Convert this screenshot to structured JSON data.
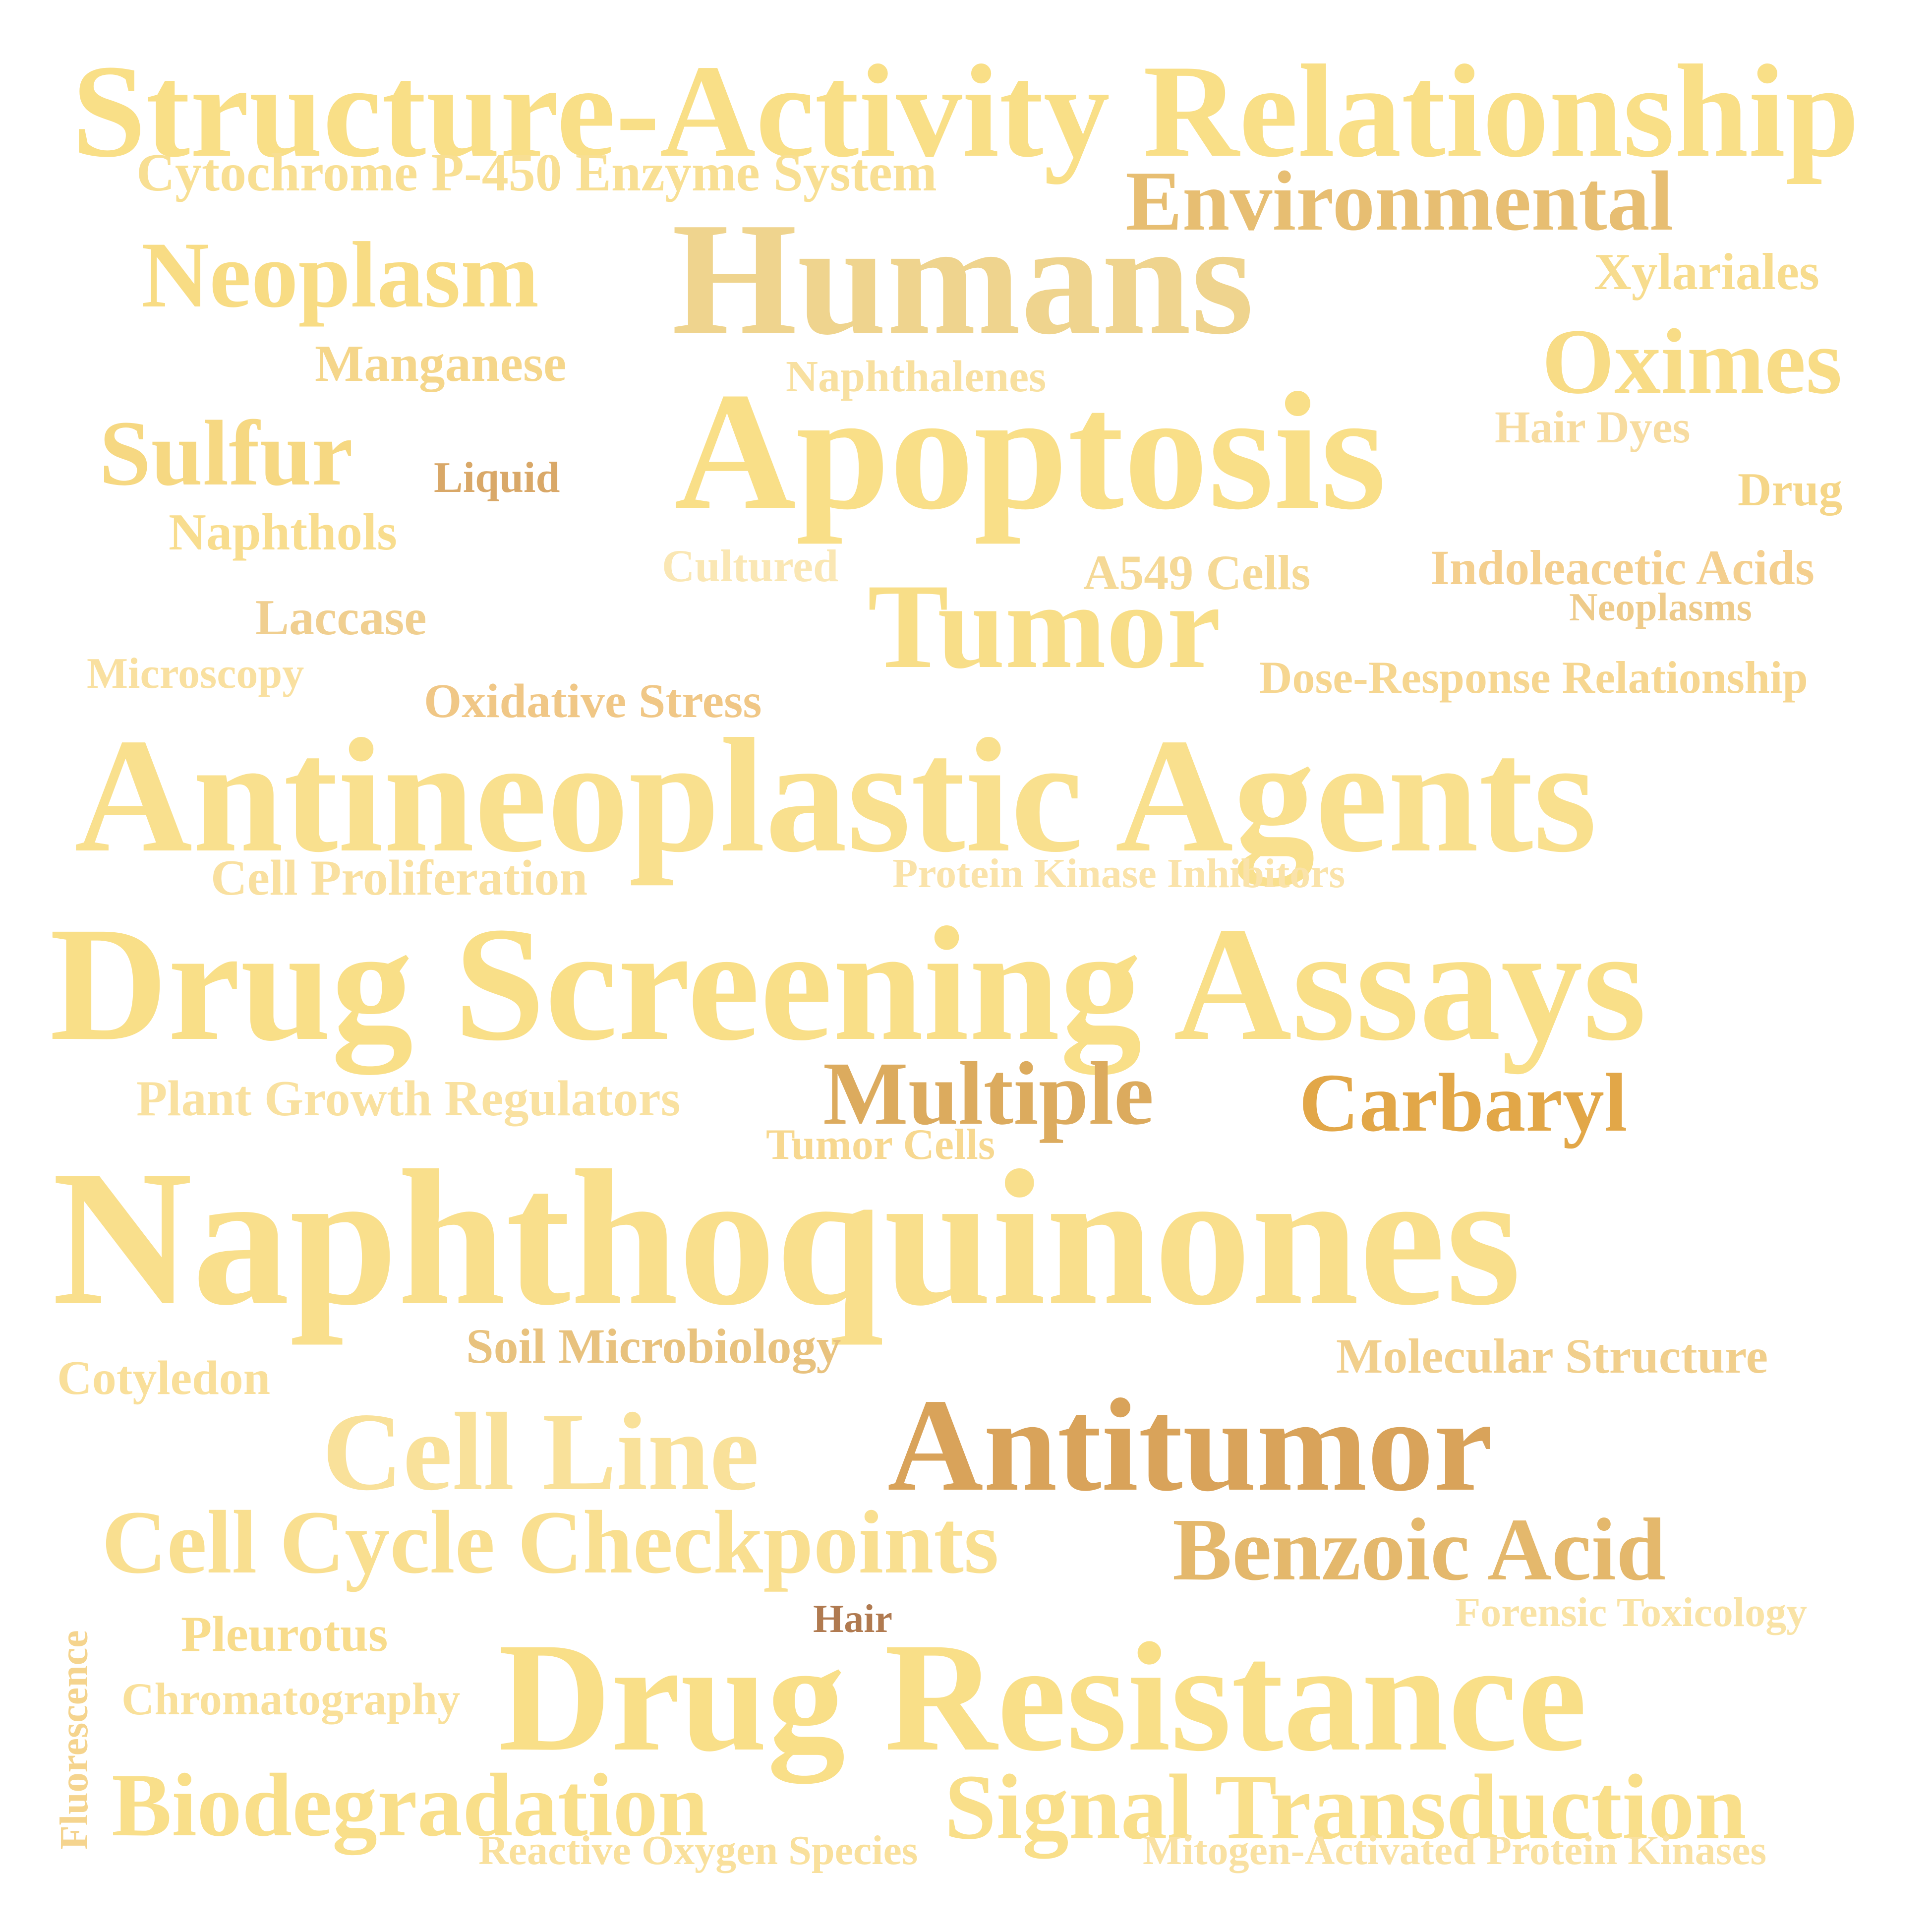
{
  "background": "#ffffff",
  "words": [
    {
      "key": "structure-activity-relationship",
      "text": "Structure-Activity Relationship",
      "color": "#f9df87"
    },
    {
      "key": "cytochrome-p450-enzyme-system",
      "text": "Cytochrome P-450 Enzyme System",
      "color": "#f8df93"
    },
    {
      "key": "environmental",
      "text": "Environmental",
      "color": "#e7be72"
    },
    {
      "key": "humans",
      "text": "Humans",
      "color": "#efd48e"
    },
    {
      "key": "neoplasm",
      "text": "Neoplasm",
      "color": "#f8dc84"
    },
    {
      "key": "xylariales",
      "text": "Xylariales",
      "color": "#f7dc8e"
    },
    {
      "key": "manganese",
      "text": "Manganese",
      "color": "#f5d68a"
    },
    {
      "key": "naphthalenes",
      "text": "Naphthalenes",
      "color": "#f8e0a0"
    },
    {
      "key": "oximes",
      "text": "Oximes",
      "color": "#f8dc86"
    },
    {
      "key": "apoptosis",
      "text": "Apoptosis",
      "color": "#f9df88"
    },
    {
      "key": "sulfur",
      "text": "Sulfur",
      "color": "#f6d882"
    },
    {
      "key": "hair-dyes",
      "text": "Hair Dyes",
      "color": "#f7dca0"
    },
    {
      "key": "liquid",
      "text": "Liquid",
      "color": "#d9a868"
    },
    {
      "key": "drug",
      "text": "Drug",
      "color": "#f5d688"
    },
    {
      "key": "naphthols",
      "text": "Naphthols",
      "color": "#f8dd8e"
    },
    {
      "key": "cultured",
      "text": "Cultured",
      "color": "#fae7b4"
    },
    {
      "key": "a549-cells",
      "text": "A549 Cells",
      "color": "#f5d996"
    },
    {
      "key": "indoleacetic-acids",
      "text": "Indoleacetic Acids",
      "color": "#f4cf8e"
    },
    {
      "key": "tumor",
      "text": "Tumor",
      "color": "#f8de88"
    },
    {
      "key": "neoplasms",
      "text": "Neoplasms",
      "color": "#eecb8a"
    },
    {
      "key": "laccase",
      "text": "Laccase",
      "color": "#f0cf90"
    },
    {
      "key": "microscopy",
      "text": "Microscopy",
      "color": "#f9e0a0"
    },
    {
      "key": "dose-response-relationship",
      "text": "Dose-Response Relationship",
      "color": "#f6d690"
    },
    {
      "key": "oxidative-stress",
      "text": "Oxidative Stress",
      "color": "#f0c786"
    },
    {
      "key": "antineoplastic-agents",
      "text": "Antineoplastic Agents",
      "color": "#f9e08e"
    },
    {
      "key": "cell-proliferation",
      "text": "Cell Proliferation",
      "color": "#f9e0a0"
    },
    {
      "key": "protein-kinase-inhibitors",
      "text": "Protein Kinase Inhibitors",
      "color": "#fae3aa"
    },
    {
      "key": "drug-screening-assays",
      "text": "Drug Screening Assays",
      "color": "#f9df88"
    },
    {
      "key": "plant-growth-regulators",
      "text": "Plant Growth Regulators",
      "color": "#f9e1a0"
    },
    {
      "key": "multiple",
      "text": "Multiple",
      "color": "#dcab5e"
    },
    {
      "key": "carbaryl",
      "text": "Carbaryl",
      "color": "#e2a748"
    },
    {
      "key": "tumor-cells",
      "text": "Tumor Cells",
      "color": "#f7d890"
    },
    {
      "key": "naphthoquinones",
      "text": "Naphthoquinones",
      "color": "#f9df8c"
    },
    {
      "key": "soil-microbiology",
      "text": "Soil Microbiology",
      "color": "#e8c27e"
    },
    {
      "key": "molecular-structure",
      "text": "Molecular Structure",
      "color": "#f1cf8c"
    },
    {
      "key": "cotyledon",
      "text": "Cotyledon",
      "color": "#f9df9a"
    },
    {
      "key": "cell-line",
      "text": "Cell Line",
      "color": "#f9e19a"
    },
    {
      "key": "antitumor",
      "text": "Antitumor",
      "color": "#d9a35a"
    },
    {
      "key": "cell-cycle-checkpoints",
      "text": "Cell Cycle Checkpoints",
      "color": "#f9df90"
    },
    {
      "key": "benzoic-acid",
      "text": "Benzoic Acid",
      "color": "#e4b86c"
    },
    {
      "key": "fluorescence",
      "text": "Fluorescence",
      "color": "#f5d48e",
      "vertical": true
    },
    {
      "key": "forensic-toxicology",
      "text": "Forensic Toxicology",
      "color": "#f9e3a6"
    },
    {
      "key": "pleurotus",
      "text": "Pleurotus",
      "color": "#f8dc8c"
    },
    {
      "key": "hair",
      "text": "Hair",
      "color": "#b07a50"
    },
    {
      "key": "drug-resistance",
      "text": "Drug Resistance",
      "color": "#f9df88"
    },
    {
      "key": "chromatography",
      "text": "Chromatography",
      "color": "#f9e09a"
    },
    {
      "key": "biodegradation",
      "text": "Biodegradation",
      "color": "#f9df8a"
    },
    {
      "key": "signal-transduction",
      "text": "Signal Transduction",
      "color": "#f9df8a"
    },
    {
      "key": "reactive-oxygen-species",
      "text": "Reactive Oxygen Species",
      "color": "#f9e09c"
    },
    {
      "key": "mitogen-activated-protein-kinases",
      "text": "Mitogen-Activated Protein Kinases",
      "color": "#f9e1a2"
    }
  ]
}
